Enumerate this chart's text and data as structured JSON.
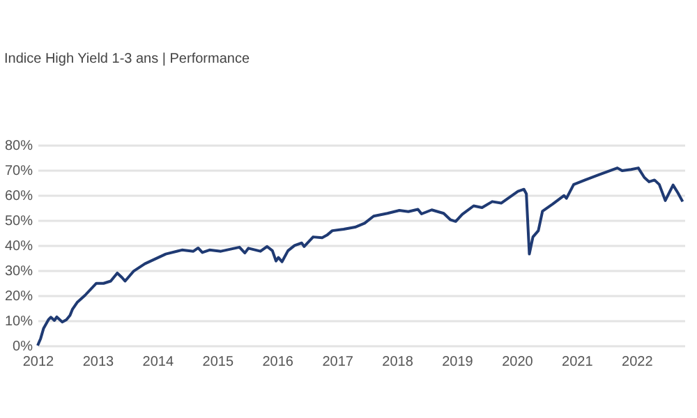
{
  "chart_data": {
    "type": "line",
    "title": "Indice High Yield 1-3 ans | Performance",
    "x": [
      2012.0,
      2012.05,
      2012.1,
      2012.18,
      2012.22,
      2012.28,
      2012.32,
      2012.41,
      2012.48,
      2012.54,
      2012.58,
      2012.66,
      2012.79,
      2012.98,
      2013.1,
      2013.22,
      2013.33,
      2013.41,
      2013.46,
      2013.6,
      2013.79,
      2014.14,
      2014.41,
      2014.6,
      2014.68,
      2014.75,
      2014.87,
      2015.06,
      2015.37,
      2015.46,
      2015.52,
      2015.72,
      2015.83,
      2015.92,
      2015.98,
      2016.02,
      2016.08,
      2016.18,
      2016.29,
      2016.41,
      2016.45,
      2016.6,
      2016.75,
      2016.83,
      2016.92,
      2017.11,
      2017.3,
      2017.46,
      2017.61,
      2017.84,
      2018.04,
      2018.19,
      2018.35,
      2018.41,
      2018.58,
      2018.78,
      2018.89,
      2018.98,
      2019.09,
      2019.28,
      2019.42,
      2019.59,
      2019.74,
      2020.02,
      2020.12,
      2020.16,
      2020.21,
      2020.27,
      2020.36,
      2020.43,
      2020.6,
      2020.79,
      2020.83,
      2020.95,
      2021.14,
      2021.37,
      2021.68,
      2021.76,
      2021.91,
      2022.03,
      2022.13,
      2022.21,
      2022.3,
      2022.38,
      2022.48,
      2022.61,
      2022.69,
      2022.77
    ],
    "series": [
      {
        "color": "#1f3a73",
        "values": [
          0,
          2.8,
          6.9,
          10.3,
          11.3,
          10,
          11.4,
          9.4,
          10.3,
          12,
          14.4,
          17.2,
          20,
          24.8,
          24.8,
          25.7,
          28.9,
          27.1,
          25.7,
          29.6,
          32.6,
          36.5,
          38.1,
          37.6,
          38.9,
          37.1,
          38.1,
          37.6,
          39.2,
          36.9,
          38.8,
          37.6,
          39.5,
          37.8,
          33.7,
          35.1,
          33.4,
          37.8,
          39.9,
          40.9,
          39.5,
          43.3,
          43,
          44,
          45.8,
          46.4,
          47.2,
          48.8,
          51.6,
          52.7,
          53.9,
          53.4,
          54.3,
          52.5,
          54.1,
          52.7,
          50.2,
          49.5,
          52.3,
          55.7,
          55,
          57.4,
          56.8,
          61.5,
          62.3,
          60.5,
          36.5,
          43.3,
          45.8,
          53.6,
          56.4,
          59.8,
          58.7,
          64.2,
          66,
          68.1,
          70.8,
          69.7,
          70.2,
          70.8,
          67,
          65.3,
          66,
          64.2,
          57.8,
          64,
          60.9,
          57.4
        ]
      }
    ],
    "xlim": [
      2012,
      2022.8
    ],
    "xticks": [
      2012,
      2013,
      2014,
      2015,
      2016,
      2017,
      2018,
      2019,
      2020,
      2021,
      2022
    ],
    "ylim": [
      0,
      80
    ],
    "yticks": [
      {
        "value": 0,
        "label": "0%"
      },
      {
        "value": 10,
        "label": "10%"
      },
      {
        "value": 20,
        "label": "20%"
      },
      {
        "value": 30,
        "label": "30%"
      },
      {
        "value": 40,
        "label": "40%"
      },
      {
        "value": 50,
        "label": "50%"
      },
      {
        "value": 60,
        "label": "60%"
      },
      {
        "value": 70,
        "label": "70%"
      },
      {
        "value": 80,
        "label": "80%"
      }
    ],
    "grid": "y",
    "legend": false
  }
}
